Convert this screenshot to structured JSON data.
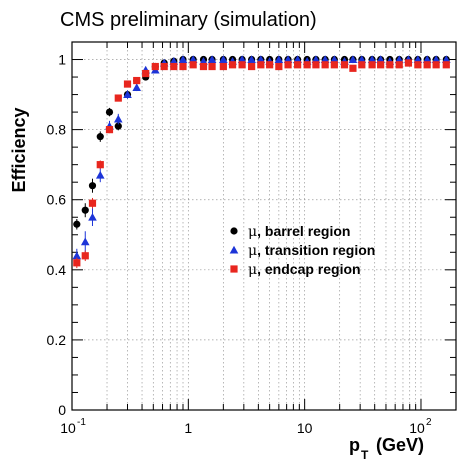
{
  "chart_data": {
    "type": "scatter",
    "title": "CMS preliminary (simulation)",
    "xlabel": "p",
    "xlabel_sub": "T",
    "xlabel_unit": "(GeV)",
    "ylabel": "Efficiency",
    "x_scale": "log",
    "xlim": [
      0.1,
      200
    ],
    "ylim": [
      0,
      1.05
    ],
    "grid": true,
    "legend_position": "center-right",
    "x_ticks": [
      {
        "value": 0.1,
        "base": "10",
        "exp": "-1"
      },
      {
        "value": 1,
        "text": "1"
      },
      {
        "value": 10,
        "text": "10"
      },
      {
        "value": 100,
        "base": "10",
        "exp": "2"
      }
    ],
    "y_ticks": [
      {
        "value": 0,
        "text": "0"
      },
      {
        "value": 0.2,
        "text": "0.2"
      },
      {
        "value": 0.4,
        "text": "0.4"
      },
      {
        "value": 0.6,
        "text": "0.6"
      },
      {
        "value": 0.8,
        "text": "0.8"
      },
      {
        "value": 1.0,
        "text": "1"
      }
    ],
    "series": [
      {
        "name": "μ, barrel region",
        "legend_symbol": "μ",
        "legend_text": ", barrel region",
        "marker": "circle",
        "color": "#000000",
        "x": [
          0.11,
          0.13,
          0.15,
          0.175,
          0.21,
          0.25,
          0.3,
          0.36,
          0.43,
          0.52,
          0.62,
          0.75,
          0.9,
          1.1,
          1.35,
          1.6,
          2.0,
          2.4,
          2.9,
          3.5,
          4.2,
          5.0,
          6.0,
          7.2,
          8.7,
          10.5,
          12.5,
          15,
          18,
          22,
          26,
          31,
          38,
          45,
          54,
          65,
          78,
          94,
          113,
          135,
          165
        ],
        "y": [
          0.53,
          0.57,
          0.64,
          0.78,
          0.85,
          0.81,
          0.9,
          0.94,
          0.95,
          0.98,
          0.99,
          0.995,
          1.0,
          1.0,
          1.0,
          1.0,
          1.0,
          1.0,
          1.0,
          1.0,
          1.0,
          1.0,
          1.0,
          1.0,
          1.0,
          1.0,
          1.0,
          1.0,
          1.0,
          1.0,
          1.0,
          1.0,
          1.0,
          1.0,
          1.0,
          1.0,
          1.0,
          1.0,
          1.0,
          1.0,
          1.0
        ],
        "err": [
          0.015,
          0.02,
          0.02,
          0.015,
          0.012,
          0.012,
          0.01,
          0.008,
          0.006,
          0.005,
          0.004,
          0.003,
          0.002,
          0.002,
          0.002,
          0.002,
          0.002,
          0.002,
          0.002,
          0.002,
          0.002,
          0.002,
          0.002,
          0.002,
          0.002,
          0.002,
          0.002,
          0.002,
          0.002,
          0.002,
          0.002,
          0.002,
          0.002,
          0.002,
          0.002,
          0.002,
          0.002,
          0.002,
          0.002,
          0.002,
          0.002
        ]
      },
      {
        "name": "μ, transition region",
        "legend_symbol": "μ",
        "legend_text": ", transition region",
        "marker": "triangle",
        "color": "#1c34d8",
        "x": [
          0.11,
          0.13,
          0.15,
          0.175,
          0.21,
          0.25,
          0.3,
          0.36,
          0.43,
          0.52,
          0.62,
          0.75,
          0.9,
          1.1,
          1.35,
          1.6,
          2.0,
          2.4,
          2.9,
          3.5,
          4.2,
          5.0,
          6.0,
          7.2,
          8.7,
          10.5,
          12.5,
          15,
          18,
          22,
          26,
          31,
          38,
          45,
          54,
          65,
          78,
          94,
          113,
          135,
          165
        ],
        "y": [
          0.44,
          0.48,
          0.55,
          0.67,
          0.81,
          0.83,
          0.9,
          0.92,
          0.97,
          0.97,
          0.99,
          0.995,
          1.0,
          1.0,
          0.995,
          1.0,
          1.0,
          0.995,
          1.0,
          1.0,
          1.0,
          0.995,
          1.0,
          1.0,
          1.0,
          0.995,
          1.0,
          1.0,
          1.0,
          0.995,
          1.0,
          1.0,
          1.0,
          1.0,
          0.995,
          1.0,
          1.0,
          1.0,
          1.0,
          1.0,
          1.0
        ],
        "err": [
          0.02,
          0.03,
          0.025,
          0.02,
          0.015,
          0.015,
          0.012,
          0.01,
          0.008,
          0.006,
          0.004,
          0.003,
          0.003,
          0.003,
          0.003,
          0.003,
          0.003,
          0.003,
          0.003,
          0.003,
          0.003,
          0.003,
          0.003,
          0.003,
          0.003,
          0.003,
          0.003,
          0.003,
          0.003,
          0.003,
          0.003,
          0.003,
          0.003,
          0.003,
          0.003,
          0.003,
          0.003,
          0.003,
          0.003,
          0.003,
          0.003
        ]
      },
      {
        "name": "μ, endcap region",
        "legend_symbol": "μ",
        "legend_text": ", endcap region",
        "marker": "square",
        "color": "#e8261e",
        "x": [
          0.11,
          0.13,
          0.15,
          0.175,
          0.21,
          0.25,
          0.3,
          0.36,
          0.43,
          0.52,
          0.62,
          0.75,
          0.9,
          1.1,
          1.35,
          1.6,
          2.0,
          2.4,
          2.9,
          3.5,
          4.2,
          5.0,
          6.0,
          7.2,
          8.7,
          10.5,
          12.5,
          15,
          18,
          22,
          26,
          31,
          38,
          45,
          54,
          65,
          78,
          94,
          113,
          135,
          165
        ],
        "y": [
          0.42,
          0.44,
          0.59,
          0.7,
          0.8,
          0.89,
          0.93,
          0.94,
          0.96,
          0.98,
          0.98,
          0.98,
          0.98,
          0.985,
          0.98,
          0.98,
          0.98,
          0.985,
          0.985,
          0.98,
          0.985,
          0.985,
          0.98,
          0.985,
          0.985,
          0.985,
          0.985,
          0.985,
          0.985,
          0.985,
          0.975,
          0.985,
          0.985,
          0.985,
          0.985,
          0.985,
          0.99,
          0.985,
          0.985,
          0.985,
          0.985
        ],
        "err": [
          0.015,
          0.015,
          0.015,
          0.012,
          0.01,
          0.008,
          0.006,
          0.005,
          0.004,
          0.003,
          0.003,
          0.003,
          0.003,
          0.002,
          0.002,
          0.002,
          0.002,
          0.002,
          0.002,
          0.002,
          0.002,
          0.002,
          0.002,
          0.002,
          0.002,
          0.002,
          0.002,
          0.002,
          0.002,
          0.002,
          0.002,
          0.002,
          0.002,
          0.002,
          0.002,
          0.002,
          0.002,
          0.002,
          0.002,
          0.002,
          0.002
        ]
      }
    ]
  }
}
